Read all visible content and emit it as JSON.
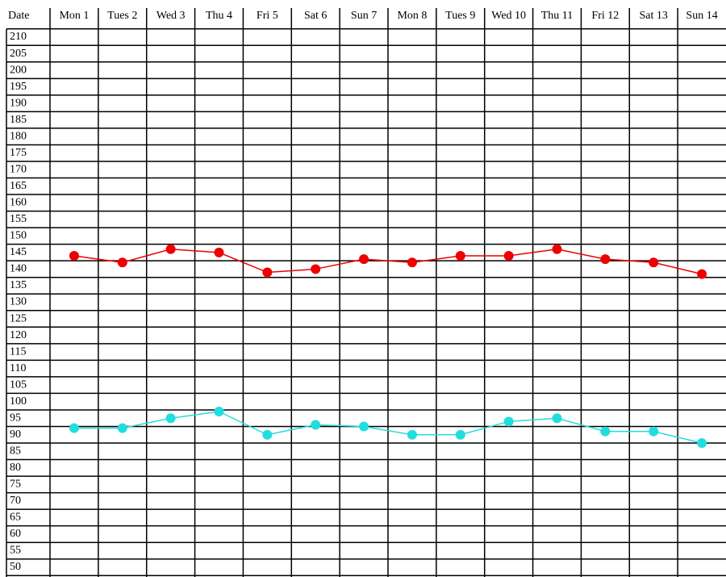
{
  "chart_data": {
    "type": "line",
    "x_label": "Date",
    "categories": [
      "Mon 1",
      "Tues 2",
      "Wed 3",
      "Thu 4",
      "Fri 5",
      "Sat 6",
      "Sun 7",
      "Mon 8",
      "Tues 9",
      "Wed 10",
      "Thu 11",
      "Fri 12",
      "Sat 13",
      "Sun 14"
    ],
    "series": [
      {
        "color": "#ee0000",
        "values": [
          144,
          142,
          146,
          145,
          139,
          140,
          143,
          142,
          144,
          144,
          146,
          143,
          142,
          138.5
        ]
      },
      {
        "color": "#22dddd",
        "values": [
          92,
          92,
          95,
          97,
          90,
          93,
          92.5,
          90,
          90,
          94,
          95,
          91,
          91,
          87.5
        ]
      }
    ],
    "ylim": [
      50,
      210
    ],
    "yticks": [
      210,
      205,
      200,
      195,
      190,
      185,
      180,
      175,
      170,
      165,
      160,
      155,
      150,
      145,
      140,
      135,
      130,
      125,
      120,
      115,
      110,
      105,
      100,
      95,
      90,
      85,
      80,
      75,
      70,
      65,
      60,
      55,
      50
    ],
    "grid": true
  }
}
